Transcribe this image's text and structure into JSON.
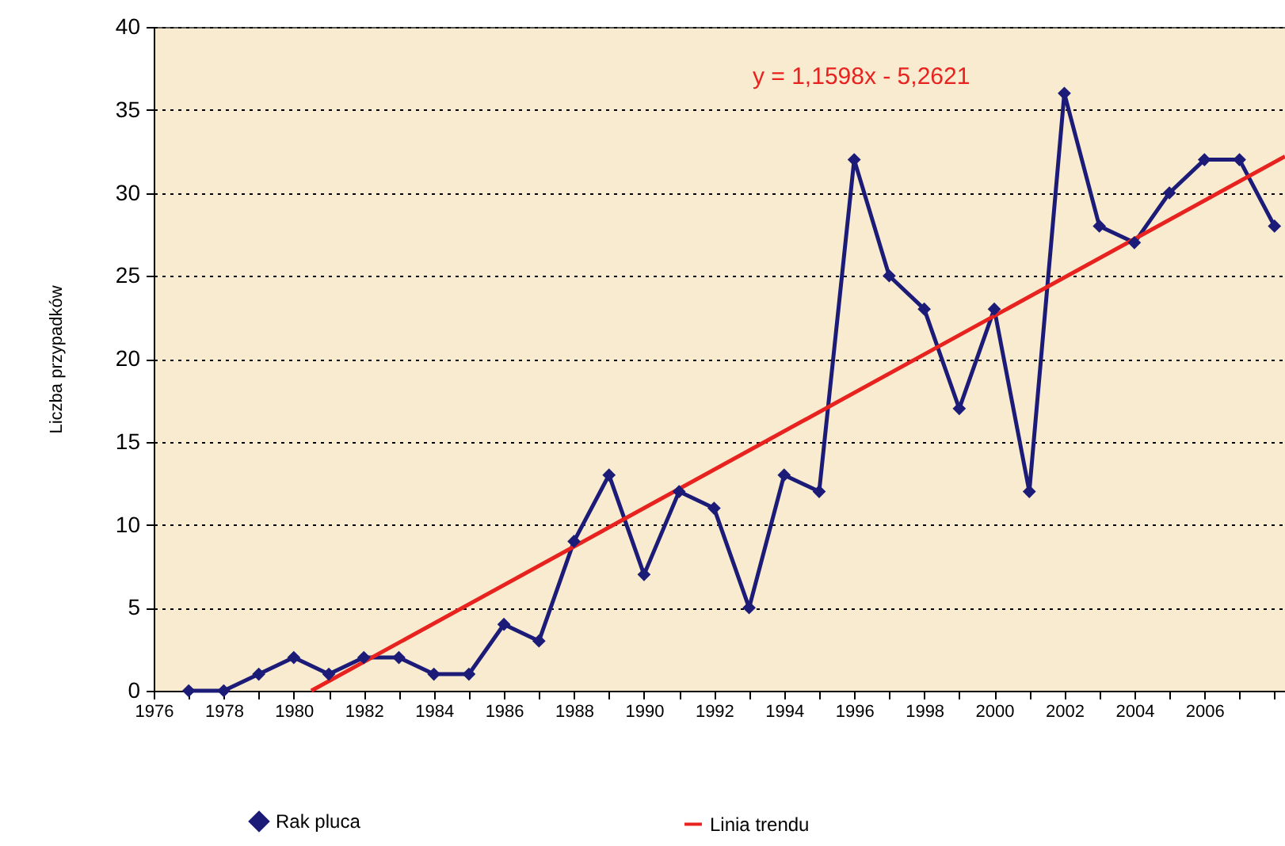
{
  "chart_data": {
    "type": "line",
    "ylabel": "Liczba przypadków",
    "annotations": [
      "y = 1,1598x - 5,2621"
    ],
    "series": [
      {
        "name": "Rak pluca",
        "color": "#1c1c78",
        "marker": "diamond",
        "x": [
          1977,
          1978,
          1979,
          1980,
          1981,
          1982,
          1983,
          1984,
          1985,
          1986,
          1987,
          1988,
          1989,
          1990,
          1991,
          1992,
          1993,
          1994,
          1995,
          1996,
          1997,
          1998,
          1999,
          2000,
          2001,
          2002,
          2003,
          2004,
          2005,
          2006,
          2007,
          2008
        ],
        "values": [
          0,
          0,
          1,
          2,
          1,
          2,
          2,
          1,
          1,
          4,
          3,
          9,
          13,
          7,
          12,
          11,
          5,
          13,
          12,
          32,
          25,
          23,
          17,
          23,
          12,
          36,
          28,
          27,
          30,
          32,
          32,
          28
        ]
      },
      {
        "name": "Linia trendu",
        "color": "#e8221e",
        "type": "line",
        "marker": "none",
        "x": [
          1980.5,
          2008.3
        ],
        "values": [
          0,
          32.2
        ]
      }
    ],
    "xlim": [
      1976,
      2008.3
    ],
    "xticks": [
      1976,
      {
        "value": 1977,
        "label": null
      },
      1978,
      {
        "value": 1979,
        "label": null
      },
      1980,
      {
        "value": 1981,
        "label": null
      },
      1982,
      {
        "value": 1983,
        "label": null
      },
      1984,
      {
        "value": 1985,
        "label": null
      },
      1986,
      {
        "value": 1987,
        "label": null
      },
      1988,
      {
        "value": 1989,
        "label": null
      },
      1990,
      {
        "value": 1991,
        "label": null
      },
      1992,
      {
        "value": 1993,
        "label": null
      },
      1994,
      {
        "value": 1995,
        "label": null
      },
      1996,
      {
        "value": 1997,
        "label": null
      },
      1998,
      {
        "value": 1999,
        "label": null
      },
      2000,
      {
        "value": 2001,
        "label": null
      },
      2002,
      {
        "value": 2003,
        "label": null
      },
      2004,
      {
        "value": 2005,
        "label": null
      },
      2006,
      {
        "value": 2007,
        "label": null
      },
      {
        "value": 2008,
        "label": null
      }
    ],
    "ylim": [
      0,
      40
    ],
    "yticks": [
      0,
      5,
      10,
      15,
      20,
      25,
      30,
      35,
      40
    ],
    "grid": "y",
    "legend": "bottom"
  }
}
